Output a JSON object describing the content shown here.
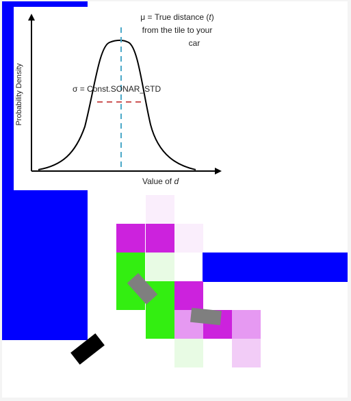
{
  "figure": {
    "ylabel": "Probability Density",
    "xlabel_prefix": "Value of ",
    "xlabel_var": "d",
    "mu_line1_prefix": "μ = True distance (",
    "mu_line1_var": "t",
    "mu_line1_suffix": ")",
    "mu_line2": "from the tile to your",
    "mu_line3": "car",
    "sigma_label": "σ = Const.SONAR_STD"
  },
  "colors": {
    "wall": "#0000ff",
    "free_area": "#ffffff",
    "background": "#f4f4f4",
    "car": "#7f7f7f",
    "own_car": "#000000",
    "magenta_strong": "#cc22dd",
    "magenta_mid": "#e699f2",
    "magenta_light": "#f2ccf7",
    "magenta_faint": "#faeefc",
    "green_strong": "#33ee11",
    "green_faint": "#e8fbe4"
  },
  "grid_tiles": [
    {
      "id": "tile-r0-c2",
      "color": "magenta_faint"
    },
    {
      "id": "tile-r1-c1",
      "color": "magenta_strong"
    },
    {
      "id": "tile-r1-c2",
      "color": "magenta_strong"
    },
    {
      "id": "tile-r1-c3",
      "color": "magenta_faint"
    },
    {
      "id": "tile-r2-c1",
      "color": "green_strong"
    },
    {
      "id": "tile-r2-c2",
      "color": "green_faint"
    },
    {
      "id": "tile-r3-c1",
      "color": "green_strong"
    },
    {
      "id": "tile-r3-c2",
      "color": "green_strong"
    },
    {
      "id": "tile-r3-c3",
      "color": "magenta_strong"
    },
    {
      "id": "tile-r4-c2",
      "color": "green_strong"
    },
    {
      "id": "tile-r4-c3",
      "color": "magenta_mid"
    },
    {
      "id": "tile-r4-c4",
      "color": "magenta_strong"
    },
    {
      "id": "tile-r4-c5",
      "color": "magenta_mid"
    },
    {
      "id": "tile-r5-c3",
      "color": "green_faint"
    },
    {
      "id": "tile-r5-c5",
      "color": "magenta_light"
    }
  ]
}
